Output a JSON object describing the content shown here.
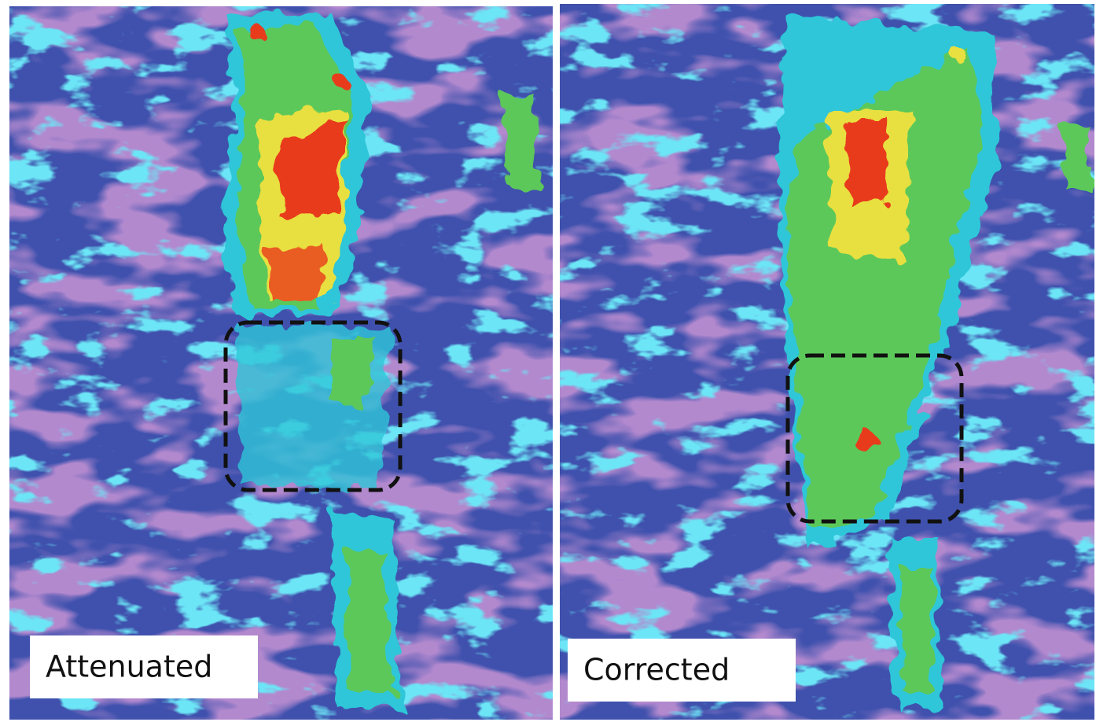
{
  "panels": [
    {
      "label": "Attenuated"
    },
    {
      "label": "Corrected"
    }
  ]
}
